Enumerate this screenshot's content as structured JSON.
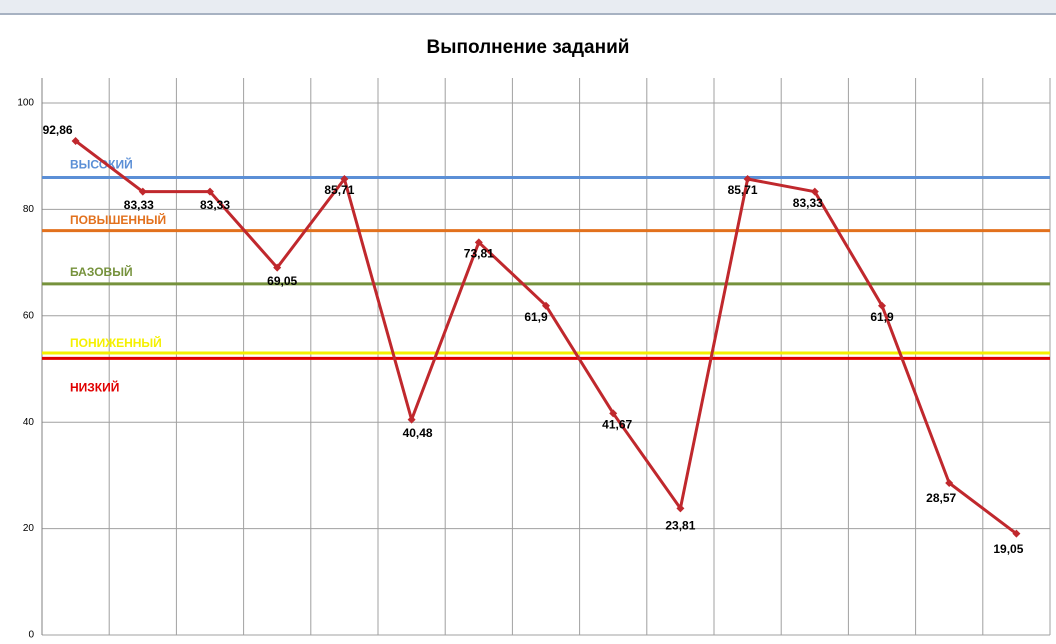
{
  "chart_data": {
    "type": "line",
    "title": "Выполнение заданий",
    "categories": [
      null,
      null,
      null,
      null,
      null,
      null,
      null,
      null,
      null,
      null,
      null,
      null,
      null,
      null,
      null
    ],
    "series": [
      {
        "color": "#c0282d",
        "values": [
          92.86,
          83.33,
          83.33,
          69.05,
          85.71,
          40.48,
          73.81,
          61.9,
          41.67,
          23.81,
          85.71,
          83.33,
          61.9,
          28.57,
          19.05
        ],
        "value_labels": [
          "92,86",
          "83,33",
          "83,33",
          "69,05",
          "85,71",
          "40,48",
          "73,81",
          "61,9",
          "41,67",
          "23,81",
          "85,71",
          "83,33",
          "61,9",
          "28,57",
          "19,05"
        ]
      }
    ],
    "levels": [
      {
        "name": "ВЫСОКИЙ",
        "value": 86,
        "color": "#5b8fd6"
      },
      {
        "name": "ПОВЫШЕННЫЙ",
        "value": 76,
        "color": "#e2711d"
      },
      {
        "name": "БАЗОВЫЙ",
        "value": 66,
        "color": "#76923c"
      },
      {
        "name": "ПОНИЖЕННЫЙ",
        "value": 53,
        "color": "#f5f000"
      },
      {
        "name": "НИЗКИЙ",
        "value": 52,
        "color": "#e00000"
      }
    ],
    "ylim": [
      0,
      100
    ],
    "yticks": [
      0,
      20,
      40,
      60,
      80,
      100
    ],
    "grid": true
  }
}
